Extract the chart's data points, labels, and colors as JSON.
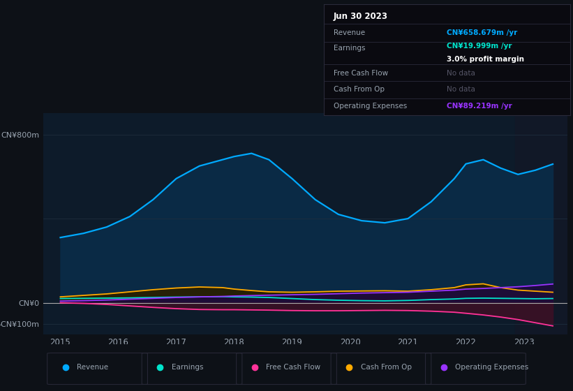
{
  "bg_color": "#0d1117",
  "chart_bg": "#0d1b2a",
  "grid_color": "#1e2d3d",
  "text_color": "#9aa5b1",
  "highlight_bg": "#111827",
  "years": [
    2015.0,
    2015.4,
    2015.8,
    2016.2,
    2016.6,
    2017.0,
    2017.4,
    2017.8,
    2018.0,
    2018.3,
    2018.6,
    2019.0,
    2019.4,
    2019.8,
    2020.2,
    2020.6,
    2021.0,
    2021.4,
    2021.8,
    2022.0,
    2022.3,
    2022.6,
    2022.9,
    2023.2,
    2023.5
  ],
  "revenue": [
    310,
    330,
    360,
    410,
    490,
    590,
    650,
    680,
    695,
    710,
    680,
    590,
    490,
    420,
    390,
    380,
    400,
    480,
    590,
    660,
    680,
    640,
    610,
    630,
    659
  ],
  "earnings": [
    20,
    21,
    22,
    23,
    25,
    27,
    28,
    29,
    28,
    27,
    25,
    20,
    15,
    12,
    10,
    9,
    11,
    15,
    18,
    21,
    22,
    21,
    20,
    19,
    20
  ],
  "free_cash_flow": [
    0,
    -3,
    -8,
    -15,
    -22,
    -28,
    -32,
    -33,
    -33,
    -34,
    -35,
    -37,
    -38,
    -38,
    -37,
    -36,
    -37,
    -40,
    -45,
    -50,
    -58,
    -68,
    -80,
    -95,
    -110
  ],
  "cash_from_op": [
    28,
    35,
    42,
    52,
    62,
    70,
    75,
    72,
    65,
    58,
    52,
    50,
    52,
    55,
    56,
    57,
    55,
    62,
    72,
    85,
    90,
    72,
    60,
    55,
    50
  ],
  "operating_expenses": [
    8,
    10,
    13,
    17,
    21,
    25,
    28,
    30,
    32,
    34,
    36,
    38,
    40,
    43,
    46,
    48,
    50,
    55,
    60,
    65,
    68,
    72,
    76,
    82,
    89
  ],
  "revenue_color": "#00aaff",
  "revenue_fill": "#0a2a45",
  "earnings_color": "#00e5cc",
  "earnings_fill": "#0a3530",
  "free_cash_flow_color": "#ff3399",
  "free_cash_flow_fill": "#3d1025",
  "cash_from_op_color": "#ffaa00",
  "cash_from_op_fill": "#2a1f00",
  "operating_expenses_color": "#9933ff",
  "operating_expenses_fill": "#1e0a3d",
  "ylim_min": -150,
  "ylim_max": 900,
  "xlim_min": 2014.7,
  "xlim_max": 2023.75,
  "highlight_x_start": 2022.85,
  "highlight_x_end": 2023.75,
  "xlabel_years": [
    "2015",
    "2016",
    "2017",
    "2018",
    "2019",
    "2020",
    "2021",
    "2022",
    "2023"
  ],
  "yticks": [
    800,
    400,
    0,
    -100
  ],
  "ytick_labels": [
    "CN¥800m",
    "",
    "CN¥0",
    "-CN¥100m"
  ],
  "info_box": {
    "date": "Jun 30 2023",
    "revenue_label": "Revenue",
    "revenue_value": "CN¥658.679m /yr",
    "earnings_label": "Earnings",
    "earnings_value": "CN¥19.999m /yr",
    "margin_text": "3.0% profit margin",
    "fcf_label": "Free Cash Flow",
    "fcf_value": "No data",
    "cashop_label": "Cash From Op",
    "cashop_value": "No data",
    "opex_label": "Operating Expenses",
    "opex_value": "CN¥89.219m /yr"
  },
  "legend_items": [
    {
      "label": "Revenue",
      "color": "#00aaff"
    },
    {
      "label": "Earnings",
      "color": "#00e5cc"
    },
    {
      "label": "Free Cash Flow",
      "color": "#ff3399"
    },
    {
      "label": "Cash From Op",
      "color": "#ffaa00"
    },
    {
      "label": "Operating Expenses",
      "color": "#9933ff"
    }
  ]
}
